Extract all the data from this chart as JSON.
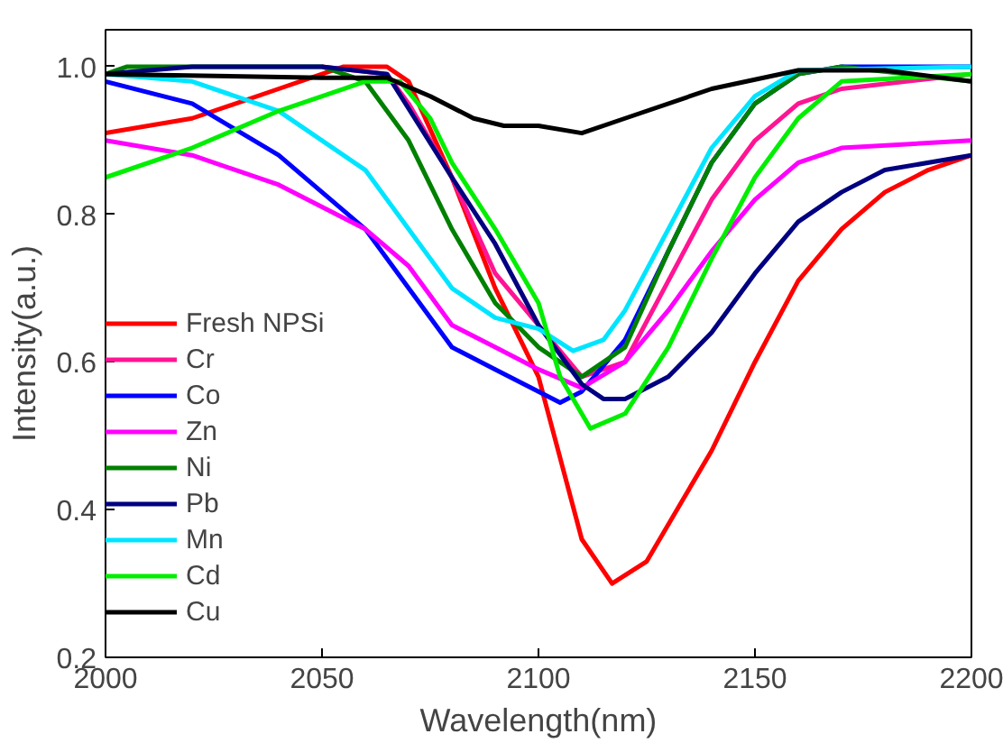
{
  "chart_data": {
    "type": "line",
    "xlabel": "Wavelength(nm)",
    "ylabel": "Intensity(a.u.)",
    "xlim": [
      2000,
      2200
    ],
    "ylim": [
      0.2,
      1.05
    ],
    "xticks": [
      2000,
      2050,
      2100,
      2150,
      2200
    ],
    "yticks": [
      {
        "value": 0.2,
        "label": "0.2"
      },
      {
        "value": 0.4,
        "label": "0.4"
      },
      {
        "value": 0.6,
        "label": "0.6"
      },
      {
        "value": 0.8,
        "label": "0.8"
      },
      {
        "value": 1.0,
        "label": "1.0"
      }
    ],
    "grid": false,
    "legend": "left",
    "marker": "none",
    "line_style": "solid",
    "series": [
      {
        "name": "Fresh NPSi",
        "color": "#ff0000",
        "x": [
          2000,
          2020,
          2040,
          2055,
          2065,
          2070,
          2080,
          2090,
          2100,
          2105,
          2110,
          2117,
          2125,
          2140,
          2150,
          2160,
          2170,
          2180,
          2190,
          2200
        ],
        "values": [
          0.91,
          0.93,
          0.97,
          1.0,
          1.0,
          0.98,
          0.85,
          0.7,
          0.58,
          0.47,
          0.36,
          0.3,
          0.33,
          0.48,
          0.6,
          0.71,
          0.78,
          0.83,
          0.86,
          0.88
        ]
      },
      {
        "name": "Cr",
        "color": "#ff1493",
        "x": [
          2050,
          2065,
          2070,
          2080,
          2090,
          2100,
          2110,
          2120,
          2130,
          2140,
          2150,
          2160,
          2170,
          2200
        ],
        "values": [
          1.0,
          0.99,
          0.95,
          0.85,
          0.72,
          0.65,
          0.58,
          0.6,
          0.71,
          0.82,
          0.9,
          0.95,
          0.97,
          0.99
        ]
      },
      {
        "name": "Co",
        "color": "#0000ff",
        "x": [
          2000,
          2020,
          2040,
          2060,
          2070,
          2080,
          2090,
          2100,
          2105,
          2110,
          2120,
          2130,
          2140,
          2150,
          2160,
          2170,
          2200
        ],
        "values": [
          0.98,
          0.95,
          0.88,
          0.78,
          0.7,
          0.62,
          0.59,
          0.56,
          0.545,
          0.56,
          0.63,
          0.75,
          0.87,
          0.95,
          0.99,
          1.0,
          1.0
        ]
      },
      {
        "name": "Zn",
        "color": "#ff00ff",
        "x": [
          2000,
          2020,
          2040,
          2060,
          2070,
          2080,
          2090,
          2100,
          2110,
          2120,
          2130,
          2140,
          2150,
          2160,
          2170,
          2200
        ],
        "values": [
          0.9,
          0.88,
          0.84,
          0.78,
          0.73,
          0.65,
          0.62,
          0.59,
          0.565,
          0.6,
          0.67,
          0.75,
          0.82,
          0.87,
          0.89,
          0.9
        ]
      },
      {
        "name": "Ni",
        "color": "#008000",
        "x": [
          2000,
          2005,
          2050,
          2060,
          2070,
          2080,
          2090,
          2100,
          2110,
          2120,
          2130,
          2140,
          2150,
          2160,
          2170,
          2200
        ],
        "values": [
          0.99,
          1.0,
          1.0,
          0.98,
          0.9,
          0.78,
          0.68,
          0.62,
          0.58,
          0.62,
          0.75,
          0.87,
          0.95,
          0.99,
          1.0,
          0.98
        ]
      },
      {
        "name": "Pb",
        "color": "#000080",
        "x": [
          2000,
          2020,
          2050,
          2065,
          2080,
          2090,
          2100,
          2110,
          2115,
          2120,
          2130,
          2140,
          2150,
          2160,
          2170,
          2180,
          2200
        ],
        "values": [
          0.99,
          1.0,
          1.0,
          0.99,
          0.85,
          0.76,
          0.65,
          0.57,
          0.55,
          0.55,
          0.58,
          0.64,
          0.72,
          0.79,
          0.83,
          0.86,
          0.88
        ]
      },
      {
        "name": "Mn",
        "color": "#00e5ff",
        "x": [
          2000,
          2020,
          2040,
          2060,
          2070,
          2080,
          2090,
          2100,
          2108,
          2115,
          2120,
          2130,
          2140,
          2150,
          2160,
          2200
        ],
        "values": [
          0.99,
          0.98,
          0.94,
          0.86,
          0.78,
          0.7,
          0.66,
          0.645,
          0.615,
          0.63,
          0.67,
          0.78,
          0.89,
          0.96,
          0.995,
          1.0
        ]
      },
      {
        "name": "Cd",
        "color": "#00ee00",
        "x": [
          2000,
          2020,
          2040,
          2060,
          2068,
          2075,
          2080,
          2090,
          2100,
          2105,
          2112,
          2120,
          2130,
          2140,
          2150,
          2160,
          2170,
          2200
        ],
        "values": [
          0.85,
          0.89,
          0.94,
          0.98,
          0.98,
          0.93,
          0.87,
          0.78,
          0.68,
          0.58,
          0.51,
          0.53,
          0.62,
          0.74,
          0.85,
          0.93,
          0.98,
          0.99
        ]
      },
      {
        "name": "Cu",
        "color": "#000000",
        "x": [
          2000,
          2050,
          2065,
          2075,
          2085,
          2092,
          2100,
          2110,
          2120,
          2140,
          2160,
          2180,
          2200
        ],
        "values": [
          0.99,
          0.985,
          0.985,
          0.96,
          0.93,
          0.92,
          0.92,
          0.91,
          0.93,
          0.97,
          0.995,
          0.995,
          0.98
        ]
      }
    ]
  }
}
